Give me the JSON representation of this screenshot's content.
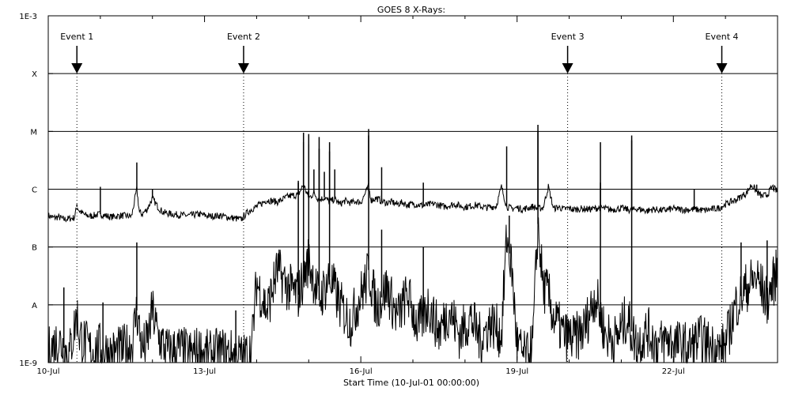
{
  "chart_data": {
    "type": "line",
    "title": "GOES 8 X-Rays:",
    "xlabel": "Start Time (10-Jul-01 00:00:00)",
    "x_unit": "days",
    "xlim": [
      0,
      14
    ],
    "x_ticks": [
      {
        "x": 0,
        "label": "10-Jul"
      },
      {
        "x": 3,
        "label": "13-Jul"
      },
      {
        "x": 6,
        "label": "16-Jul"
      },
      {
        "x": 9,
        "label": "19-Jul"
      },
      {
        "x": 12,
        "label": "22-Jul"
      }
    ],
    "y_scale": "log",
    "ylim": [
      1e-09,
      0.001
    ],
    "y_ticks": [
      {
        "y": 0.001,
        "label": "1E-3"
      },
      {
        "y": 0.0001,
        "label": "X"
      },
      {
        "y": 1e-05,
        "label": "M"
      },
      {
        "y": 1e-06,
        "label": "C"
      },
      {
        "y": 1e-07,
        "label": "B"
      },
      {
        "y": 1e-08,
        "label": "A"
      },
      {
        "y": 1e-09,
        "label": "1E-9"
      }
    ],
    "class_lines": [
      0.0001,
      1e-05,
      1e-06,
      1e-07,
      1e-08
    ],
    "events": [
      {
        "label": "Event 1",
        "x": 0.55
      },
      {
        "label": "Event 2",
        "x": 3.75
      },
      {
        "label": "Event 3",
        "x": 9.97
      },
      {
        "label": "Event 4",
        "x": 12.93
      }
    ],
    "series": [
      {
        "id": "long",
        "x": [
          0,
          0.1,
          0.2,
          0.3,
          0.4,
          0.5,
          0.55,
          0.6,
          0.7,
          0.8,
          1,
          1.2,
          1.4,
          1.6,
          1.7,
          1.75,
          1.8,
          1.9,
          2.0,
          2.1,
          2.2,
          2.3,
          2.5,
          2.7,
          2.9,
          3.1,
          3.3,
          3.5,
          3.6,
          3.7,
          3.75,
          3.8,
          3.9,
          4.0,
          4.2,
          4.4,
          4.6,
          4.8,
          4.9,
          5.0,
          5.1,
          5.2,
          5.3,
          5.4,
          5.5,
          5.6,
          5.7,
          5.8,
          5.9,
          6.0,
          6.1,
          6.15,
          6.2,
          6.3,
          6.4,
          6.5,
          6.6,
          6.7,
          6.8,
          6.9,
          7.0,
          7.2,
          7.4,
          7.6,
          7.8,
          8.0,
          8.2,
          8.4,
          8.6,
          8.7,
          8.8,
          8.9,
          9.0,
          9.1,
          9.2,
          9.3,
          9.4,
          9.5,
          9.6,
          9.7,
          9.8,
          9.9,
          10.0,
          10.1,
          10.2,
          10.4,
          10.6,
          10.8,
          11.0,
          11.1,
          11.2,
          11.3,
          11.4,
          11.5,
          11.6,
          11.8,
          12.0,
          12.2,
          12.4,
          12.6,
          12.8,
          12.9,
          13.0,
          13.1,
          13.2,
          13.3,
          13.4,
          13.5,
          13.6,
          13.7,
          13.8,
          13.9,
          14.0
        ],
        "y": [
          3.5e-07,
          3.2e-07,
          3.3e-07,
          3e-07,
          3.1e-07,
          3.2e-07,
          5e-07,
          4.2e-07,
          3.6e-07,
          3.4e-07,
          3.7e-07,
          3.3e-07,
          3.5e-07,
          3.4e-07,
          1e-06,
          4e-07,
          3.7e-07,
          4.5e-07,
          7e-07,
          5e-07,
          4e-07,
          3.8e-07,
          3.6e-07,
          3.5e-07,
          3.7e-07,
          3.4e-07,
          3.5e-07,
          3.2e-07,
          3.1e-07,
          3e-07,
          3.3e-07,
          3.8e-07,
          4.5e-07,
          5e-07,
          6.5e-07,
          6e-07,
          7.5e-07,
          8e-07,
          1.2e-06,
          7e-07,
          8.5e-07,
          6.5e-07,
          7.2e-07,
          6e-07,
          6.8e-07,
          5.5e-07,
          6.3e-07,
          5.8e-07,
          6.2e-07,
          5.9e-07,
          9e-07,
          1.1e-06,
          6.5e-07,
          7e-07,
          6.2e-07,
          5.8e-07,
          6e-07,
          5.5e-07,
          5.9e-07,
          5.3e-07,
          5.6e-07,
          5.2e-07,
          5.6e-07,
          5e-07,
          5.5e-07,
          4.9e-07,
          5.3e-07,
          4.8e-07,
          5.1e-07,
          1.1e-06,
          5e-07,
          4.6e-07,
          4.8e-07,
          4.5e-07,
          4.7e-07,
          5e-07,
          4.6e-07,
          4.8e-07,
          1.1e-06,
          4.6e-07,
          4.9e-07,
          4.5e-07,
          4.7e-07,
          4.4e-07,
          4.6e-07,
          4.5e-07,
          4.8e-07,
          4.4e-07,
          4.7e-07,
          4.5e-07,
          4.3e-07,
          4.6e-07,
          4.4e-07,
          4.2e-07,
          4.5e-07,
          4.3e-07,
          4.6e-07,
          4.4e-07,
          4.5e-07,
          4.3e-07,
          4.6e-07,
          4.8e-07,
          5.5e-07,
          6e-07,
          6.5e-07,
          7.5e-07,
          8.5e-07,
          1.2e-06,
          9e-07,
          7.5e-07,
          8e-07,
          1.1e-06,
          9e-07
        ],
        "spikes": [
          {
            "x": 0.55,
            "y": 5.5e-07
          },
          {
            "x": 1.0,
            "y": 1.1e-06
          },
          {
            "x": 1.7,
            "y": 2.9e-06
          },
          {
            "x": 2.0,
            "y": 1e-06
          },
          {
            "x": 4.8,
            "y": 1.4e-06
          },
          {
            "x": 4.9,
            "y": 9.5e-06
          },
          {
            "x": 5.0,
            "y": 9e-06
          },
          {
            "x": 5.1,
            "y": 2.2e-06
          },
          {
            "x": 5.2,
            "y": 8e-06
          },
          {
            "x": 5.3,
            "y": 2e-06
          },
          {
            "x": 5.4,
            "y": 6.5e-06
          },
          {
            "x": 5.5,
            "y": 2.2e-06
          },
          {
            "x": 6.15,
            "y": 1.1e-05
          },
          {
            "x": 6.4,
            "y": 2.4e-06
          },
          {
            "x": 7.2,
            "y": 1.3e-06
          },
          {
            "x": 8.8,
            "y": 5.5e-06
          },
          {
            "x": 9.4,
            "y": 1.3e-05
          },
          {
            "x": 10.6,
            "y": 6.5e-06
          },
          {
            "x": 11.2,
            "y": 8.5e-06
          },
          {
            "x": 12.4,
            "y": 1e-06
          },
          {
            "x": 13.6,
            "y": 1.2e-06
          }
        ]
      },
      {
        "id": "short",
        "x": [
          0,
          0.2,
          0.4,
          0.55,
          0.6,
          0.8,
          1.0,
          1.2,
          1.4,
          1.6,
          1.7,
          1.8,
          1.9,
          2.0,
          2.1,
          2.3,
          2.5,
          2.7,
          2.9,
          3.1,
          3.3,
          3.5,
          3.75,
          3.9,
          4.0,
          4.2,
          4.4,
          4.6,
          4.8,
          5.0,
          5.2,
          5.4,
          5.6,
          5.8,
          6.0,
          6.1,
          6.15,
          6.3,
          6.5,
          6.7,
          6.9,
          7.1,
          7.3,
          7.5,
          7.7,
          7.9,
          8.1,
          8.3,
          8.5,
          8.7,
          8.8,
          8.9,
          9.0,
          9.1,
          9.2,
          9.3,
          9.4,
          9.5,
          9.6,
          9.7,
          9.9,
          10.1,
          10.3,
          10.5,
          10.7,
          10.9,
          11.1,
          11.3,
          11.5,
          11.7,
          11.9,
          12.1,
          12.3,
          12.5,
          12.7,
          12.9,
          13.0,
          13.2,
          13.4,
          13.6,
          13.8,
          14.0
        ],
        "y": [
          1.5e-09,
          2.5e-09,
          1.3e-09,
          7e-09,
          3e-09,
          1.6e-09,
          1.8e-09,
          1.4e-09,
          1.6e-09,
          2e-09,
          8e-09,
          1.7e-09,
          2.2e-09,
          8e-09,
          3e-09,
          1.5e-09,
          1.7e-09,
          1.4e-09,
          1.6e-09,
          1.3e-09,
          1.5e-09,
          1.4e-09,
          1.2e-09,
          1.6e-09,
          2.5e-08,
          8e-09,
          4e-08,
          2e-08,
          1.5e-08,
          6e-08,
          1.2e-08,
          3e-08,
          1e-08,
          5e-09,
          1.5e-08,
          2.5e-08,
          4e-08,
          9e-09,
          2e-08,
          6e-09,
          1.5e-08,
          4e-09,
          1e-08,
          3.5e-09,
          8e-09,
          3e-09,
          6e-09,
          2.5e-09,
          5e-09,
          3e-09,
          1.5e-07,
          4e-08,
          2e-09,
          1.4e-09,
          1.2e-09,
          2e-09,
          2.5e-07,
          2e-08,
          1.5e-08,
          6e-09,
          3e-09,
          2.5e-09,
          4e-09,
          1.5e-08,
          3e-09,
          2.5e-09,
          6e-09,
          2e-09,
          3.5e-09,
          2e-09,
          2.5e-09,
          2e-09,
          1.8e-09,
          2.5e-09,
          2e-09,
          1.6e-09,
          2e-09,
          1e-08,
          2e-08,
          3e-08,
          1.2e-08,
          4e-08
        ],
        "spikes": [
          {
            "x": 0.3,
            "y": 2e-08
          },
          {
            "x": 1.05,
            "y": 1.1e-08
          },
          {
            "x": 1.7,
            "y": 1.2e-07
          },
          {
            "x": 2.0,
            "y": 1.2e-08
          },
          {
            "x": 3.6,
            "y": 8e-09
          },
          {
            "x": 4.8,
            "y": 1.3e-06
          },
          {
            "x": 4.9,
            "y": 6.5e-06
          },
          {
            "x": 5.0,
            "y": 6e-06
          },
          {
            "x": 5.2,
            "y": 5e-06
          },
          {
            "x": 5.4,
            "y": 4.5e-06
          },
          {
            "x": 6.15,
            "y": 8.5e-06
          },
          {
            "x": 6.4,
            "y": 2e-07
          },
          {
            "x": 7.2,
            "y": 1e-07
          },
          {
            "x": 8.85,
            "y": 3.5e-07
          },
          {
            "x": 9.4,
            "y": 1e-05
          },
          {
            "x": 10.6,
            "y": 1.3e-06
          },
          {
            "x": 11.2,
            "y": 7e-06
          },
          {
            "x": 13.3,
            "y": 1.2e-07
          },
          {
            "x": 13.8,
            "y": 1.3e-07
          }
        ]
      }
    ]
  }
}
